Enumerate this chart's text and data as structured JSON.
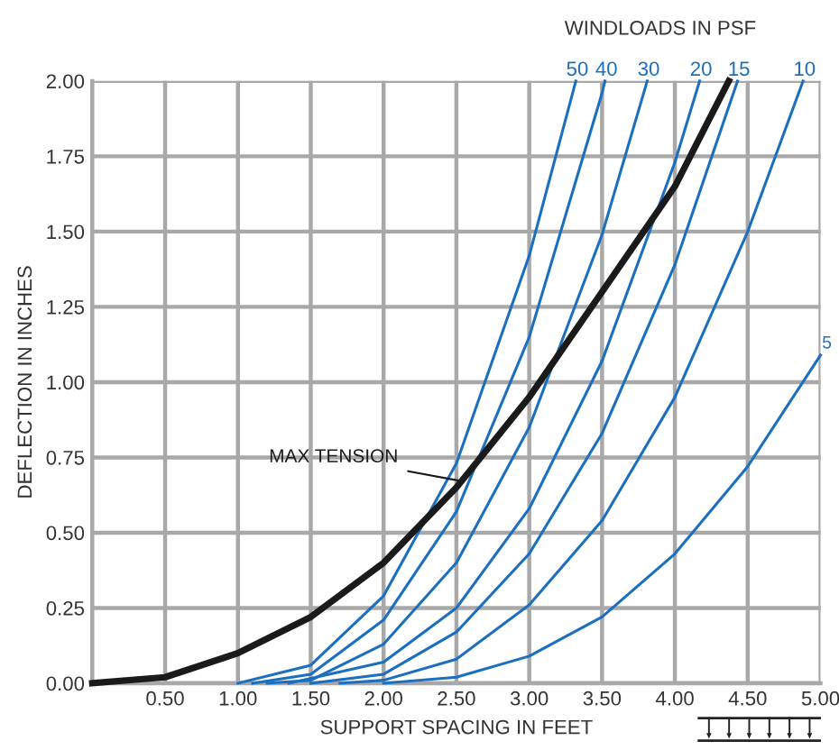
{
  "chart_data": {
    "type": "line",
    "xlabel": "SUPPORT SPACING IN FEET",
    "ylabel": "DEFLECTION IN INCHES",
    "legend_title": "WINDLOADS IN PSF",
    "xlim": [
      0,
      5
    ],
    "ylim": [
      0,
      2
    ],
    "xticks": [
      {
        "value": 0.5,
        "label": "0.50"
      },
      {
        "value": 1,
        "label": "1.00"
      },
      {
        "value": 1.5,
        "label": "1.50"
      },
      {
        "value": 2,
        "label": "2.00"
      },
      {
        "value": 2.5,
        "label": "2.50"
      },
      {
        "value": 3,
        "label": "3.00"
      },
      {
        "value": 3.5,
        "label": "3.50"
      },
      {
        "value": 4,
        "label": "4.00"
      },
      {
        "value": 4.5,
        "label": "4.50"
      },
      {
        "value": 5,
        "label": "5.00"
      }
    ],
    "yticks": [
      {
        "value": 0,
        "label": "0.00"
      },
      {
        "value": 0.25,
        "label": "0.25"
      },
      {
        "value": 0.5,
        "label": "0.50"
      },
      {
        "value": 0.75,
        "label": "0.75"
      },
      {
        "value": 1,
        "label": "1.00"
      },
      {
        "value": 1.25,
        "label": "1.25"
      },
      {
        "value": 1.5,
        "label": "1.50"
      },
      {
        "value": 1.75,
        "label": "1.75"
      },
      {
        "value": 2,
        "label": "2.00"
      }
    ],
    "grid": true,
    "legend": false,
    "marker": "none",
    "line_style": "solid",
    "series": [
      {
        "name": "50",
        "color": "#1a6fc0",
        "x": [
          1.0,
          1.5,
          2.0,
          2.5,
          3.0,
          3.32
        ],
        "values": [
          0,
          0.06,
          0.29,
          0.73,
          1.42,
          2.0
        ]
      },
      {
        "name": "40",
        "color": "#1a6fc0",
        "x": [
          1.1,
          1.5,
          2.0,
          2.5,
          3.0,
          3.5,
          3.52
        ],
        "values": [
          0,
          0.03,
          0.21,
          0.57,
          1.15,
          1.96,
          2.0
        ]
      },
      {
        "name": "30",
        "color": "#1a6fc0",
        "x": [
          1.2,
          1.5,
          2.0,
          2.5,
          3.0,
          3.5,
          3.81
        ],
        "values": [
          0,
          0.01,
          0.13,
          0.4,
          0.85,
          1.49,
          2.0
        ]
      },
      {
        "name": "20",
        "color": "#1a6fc0",
        "x": [
          1.35,
          2.0,
          2.5,
          3.0,
          3.5,
          4.0,
          4.17
        ],
        "values": [
          0,
          0.07,
          0.25,
          0.58,
          1.07,
          1.73,
          2.0
        ]
      },
      {
        "name": "15",
        "color": "#1a6fc0",
        "x": [
          1.5,
          2.0,
          2.5,
          3.0,
          3.5,
          4.0,
          4.43
        ],
        "values": [
          0,
          0.03,
          0.17,
          0.43,
          0.83,
          1.39,
          2.0
        ]
      },
      {
        "name": "10",
        "color": "#1a6fc0",
        "x": [
          1.7,
          2.0,
          2.5,
          3.0,
          3.5,
          4.0,
          4.5,
          4.88
        ],
        "values": [
          0,
          0.01,
          0.08,
          0.26,
          0.54,
          0.95,
          1.5,
          2.0
        ]
      },
      {
        "name": "5",
        "color": "#1a6fc0",
        "x": [
          2.0,
          2.5,
          3.0,
          3.5,
          4.0,
          4.5,
          5.0
        ],
        "values": [
          0,
          0.02,
          0.09,
          0.22,
          0.43,
          0.72,
          1.09
        ]
      },
      {
        "name": "MAX TENSION",
        "color": "#1a1a1a",
        "x": [
          0,
          0.5,
          1.0,
          1.5,
          2.0,
          2.5,
          3.0,
          3.5,
          4.0,
          4.37
        ],
        "values": [
          0,
          0.02,
          0.1,
          0.22,
          0.4,
          0.65,
          0.95,
          1.3,
          1.65,
          2.0
        ]
      }
    ]
  }
}
